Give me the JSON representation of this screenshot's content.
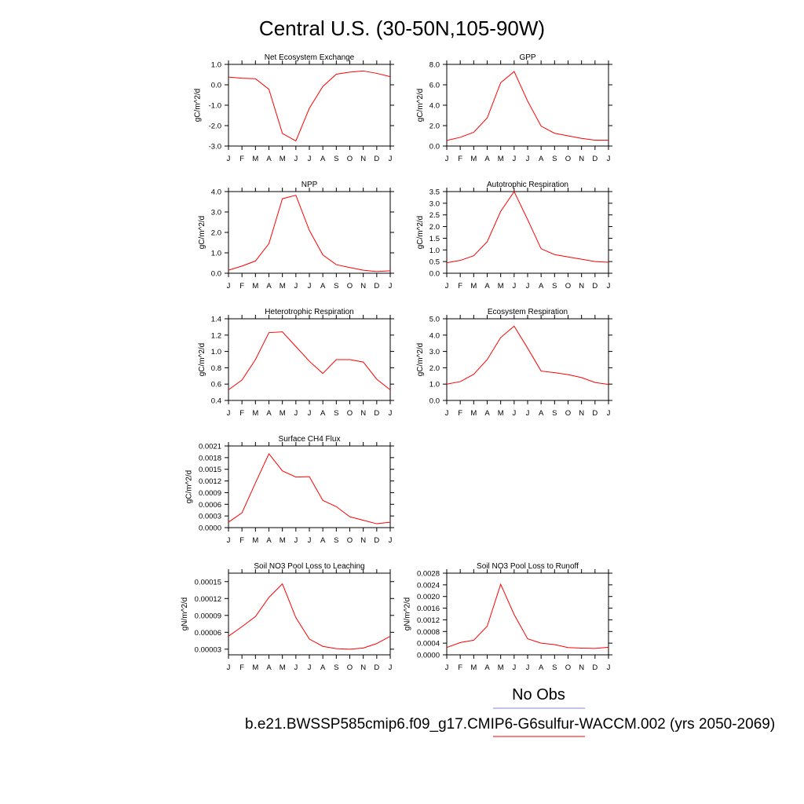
{
  "figure": {
    "title": "Central U.S. (30-50N,105-90W)",
    "legend_label": "No Obs",
    "caption": "b.e21.BWSSP585cmip6.f09_g17.CMIP6-G6sulfur-WACCM.002 (yrs 2050-2069)",
    "colors": {
      "model_line": "#ff0000",
      "obs_line": "#8080ff",
      "axes": "#000000"
    }
  },
  "chart_data": [
    {
      "type": "line",
      "title": "Net Ecosystem Exchange",
      "ylabel": "gC/m^2/d",
      "categories": [
        "J",
        "F",
        "M",
        "A",
        "M",
        "J",
        "J",
        "A",
        "S",
        "O",
        "N",
        "D",
        "J"
      ],
      "ylim": [
        -3.0,
        1.0
      ],
      "yticks": [
        -3.0,
        -2.0,
        -1.0,
        0.0,
        1.0
      ],
      "ytick_labels": [
        "-3.0",
        "-2.0",
        "-1.0",
        "0.0",
        "1.0"
      ],
      "values": [
        0.38,
        0.32,
        0.3,
        -0.22,
        -2.38,
        -2.75,
        -1.15,
        -0.08,
        0.52,
        0.62,
        0.68,
        0.56,
        0.4
      ]
    },
    {
      "type": "line",
      "title": "GPP",
      "ylabel": "gC/m^2/d",
      "categories": [
        "J",
        "F",
        "M",
        "A",
        "M",
        "J",
        "J",
        "A",
        "S",
        "O",
        "N",
        "D",
        "J"
      ],
      "ylim": [
        0.0,
        8.0
      ],
      "yticks": [
        0.0,
        2.0,
        4.0,
        6.0,
        8.0
      ],
      "ytick_labels": [
        "0.0",
        "2.0",
        "4.0",
        "6.0",
        "8.0"
      ],
      "values": [
        0.55,
        0.85,
        1.35,
        2.75,
        6.2,
        7.3,
        4.4,
        1.95,
        1.25,
        1.0,
        0.75,
        0.58,
        0.58
      ]
    },
    {
      "type": "line",
      "title": "NPP",
      "ylabel": "gC/m^2/d",
      "categories": [
        "J",
        "F",
        "M",
        "A",
        "M",
        "J",
        "J",
        "A",
        "S",
        "O",
        "N",
        "D",
        "J"
      ],
      "ylim": [
        0.0,
        4.0
      ],
      "yticks": [
        0.0,
        1.0,
        2.0,
        3.0,
        4.0
      ],
      "ytick_labels": [
        "0.0",
        "1.0",
        "2.0",
        "3.0",
        "4.0"
      ],
      "values": [
        0.15,
        0.35,
        0.6,
        1.45,
        3.65,
        3.82,
        2.1,
        0.9,
        0.42,
        0.28,
        0.15,
        0.08,
        0.12
      ]
    },
    {
      "type": "line",
      "title": "Autotrophic Respiration",
      "ylabel": "gC/m^2/d",
      "categories": [
        "J",
        "F",
        "M",
        "A",
        "M",
        "J",
        "J",
        "A",
        "S",
        "O",
        "N",
        "D",
        "J"
      ],
      "ylim": [
        0.0,
        3.5
      ],
      "yticks": [
        0.0,
        0.5,
        1.0,
        1.5,
        2.0,
        2.5,
        3.0,
        3.5
      ],
      "ytick_labels": [
        "0.0",
        "0.5",
        "1.0",
        "1.5",
        "2.0",
        "2.5",
        "3.0",
        "3.5"
      ],
      "values": [
        0.45,
        0.55,
        0.75,
        1.35,
        2.65,
        3.5,
        2.3,
        1.05,
        0.8,
        0.7,
        0.6,
        0.5,
        0.47
      ]
    },
    {
      "type": "line",
      "title": "Heterotrophic Respiration",
      "ylabel": "gC/m^2/d",
      "categories": [
        "J",
        "F",
        "M",
        "A",
        "M",
        "J",
        "J",
        "A",
        "S",
        "O",
        "N",
        "D",
        "J"
      ],
      "ylim": [
        0.4,
        1.4
      ],
      "yticks": [
        0.4,
        0.6,
        0.8,
        1.0,
        1.2,
        1.4
      ],
      "ytick_labels": [
        "0.4",
        "0.6",
        "0.8",
        "1.0",
        "1.2",
        "1.4"
      ],
      "values": [
        0.53,
        0.65,
        0.9,
        1.23,
        1.24,
        1.06,
        0.88,
        0.73,
        0.9,
        0.9,
        0.87,
        0.66,
        0.53
      ]
    },
    {
      "type": "line",
      "title": "Ecosystem Respiration",
      "ylabel": "gC/m^2/d",
      "categories": [
        "J",
        "F",
        "M",
        "A",
        "M",
        "J",
        "J",
        "A",
        "S",
        "O",
        "N",
        "D",
        "J"
      ],
      "ylim": [
        0.0,
        5.0
      ],
      "yticks": [
        0.0,
        1.0,
        2.0,
        3.0,
        4.0,
        5.0
      ],
      "ytick_labels": [
        "0.0",
        "1.0",
        "2.0",
        "3.0",
        "4.0",
        "5.0"
      ],
      "values": [
        1.0,
        1.15,
        1.6,
        2.5,
        3.85,
        4.55,
        3.2,
        1.8,
        1.7,
        1.58,
        1.4,
        1.1,
        0.98
      ]
    },
    {
      "type": "line",
      "title": "Surface CH4 Flux",
      "ylabel": "gC/m^2/d",
      "categories": [
        "J",
        "F",
        "M",
        "A",
        "M",
        "J",
        "J",
        "A",
        "S",
        "O",
        "N",
        "D",
        "J"
      ],
      "ylim": [
        0.0,
        0.0021
      ],
      "yticks": [
        0.0,
        0.0003,
        0.0006,
        0.0009,
        0.0012,
        0.0015,
        0.0018,
        0.0021
      ],
      "ytick_labels": [
        "0.0000",
        "0.0003",
        "0.0006",
        "0.0009",
        "0.0012",
        "0.0015",
        "0.0018",
        "0.0021"
      ],
      "values": [
        0.00014,
        0.00038,
        0.00115,
        0.0019,
        0.00146,
        0.0013,
        0.00131,
        0.0007,
        0.00054,
        0.00028,
        0.00019,
        0.0001,
        0.00014
      ]
    },
    {
      "type": "line",
      "title": "Soil NO3 Pool Loss to Leaching",
      "ylabel": "gN/m^2/d",
      "categories": [
        "J",
        "F",
        "M",
        "A",
        "M",
        "J",
        "J",
        "A",
        "S",
        "O",
        "N",
        "D",
        "J"
      ],
      "ylim": [
        2e-05,
        0.000165
      ],
      "yticks": [
        3e-05,
        6e-05,
        9e-05,
        0.00012,
        0.00015
      ],
      "ytick_labels": [
        "0.00003",
        "0.00006",
        "0.00009",
        "0.00012",
        "0.00015"
      ],
      "values": [
        5.3e-05,
        7e-05,
        8.8e-05,
        0.000122,
        0.000146,
        8.6e-05,
        4.8e-05,
        3.5e-05,
        3.1e-05,
        3e-05,
        3.2e-05,
        4e-05,
        5.3e-05
      ]
    },
    {
      "type": "line",
      "title": "Soil NO3 Pool Loss to Runoff",
      "ylabel": "gN/m^2/d",
      "categories": [
        "J",
        "F",
        "M",
        "A",
        "M",
        "J",
        "J",
        "A",
        "S",
        "O",
        "N",
        "D",
        "J"
      ],
      "ylim": [
        0.0,
        0.0028
      ],
      "yticks": [
        0.0,
        0.0004,
        0.0008,
        0.0012,
        0.0016,
        0.002,
        0.0024,
        0.0028
      ],
      "ytick_labels": [
        "0.0000",
        "0.0004",
        "0.0008",
        "0.0012",
        "0.0016",
        "0.0020",
        "0.0024",
        "0.0028"
      ],
      "values": [
        0.00025,
        0.00042,
        0.0005,
        0.00098,
        0.00242,
        0.00138,
        0.00055,
        0.0004,
        0.00035,
        0.00025,
        0.00023,
        0.00022,
        0.00026
      ]
    }
  ]
}
